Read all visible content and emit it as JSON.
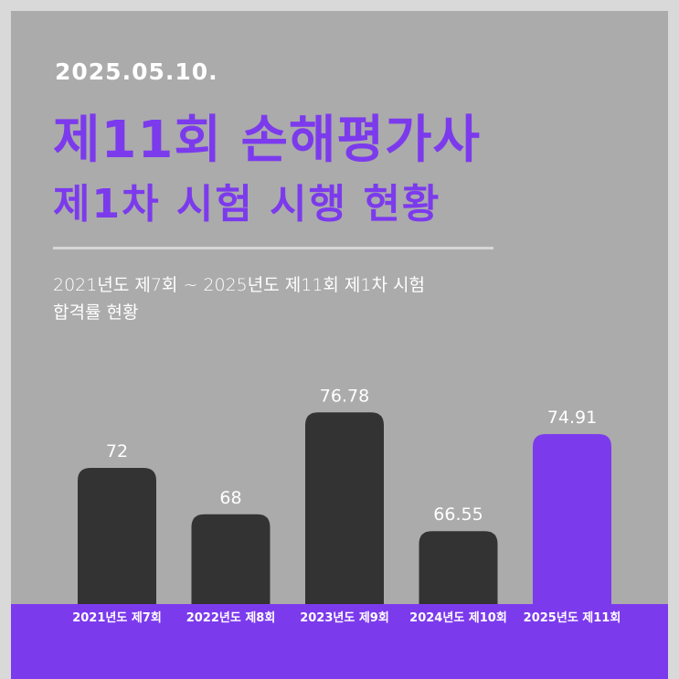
{
  "header": {
    "date": "2025.05.10.",
    "title_line1": "제11회 손해평가사",
    "title_line2": "제1차 시험 시행 현황",
    "subtitle_line1": "2021년도 제7회 ~ 2025년도 제11회 제1차 시험",
    "subtitle_line2": "합격률  현황"
  },
  "colors": {
    "background": "#ababab",
    "accent": "#7c3aed",
    "bar_default": "#333333",
    "bar_highlight": "#7c3aed"
  },
  "chart_data": {
    "type": "bar",
    "categories": [
      "2021년도 제7회",
      "2022년도 제8회",
      "2023년도 제9회",
      "2024년도 제10회",
      "2025년도 제11회"
    ],
    "values": [
      72,
      68,
      76.78,
      66.55,
      74.91
    ],
    "value_labels": [
      "72",
      "68",
      "76.78",
      "66.55",
      "74.91"
    ],
    "highlight_index": 4,
    "title": "",
    "xlabel": "",
    "ylabel": "",
    "grid": false,
    "legend": "none"
  }
}
